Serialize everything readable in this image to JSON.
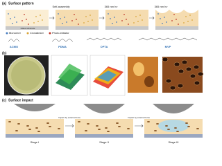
{
  "panel_a": {
    "label": "(a)",
    "title": "Surface pattern",
    "steps": [
      "Self-assembly",
      "365 nm hν",
      "365 nm hν"
    ],
    "substrate": "Glass substrate",
    "legend": [
      "Monomer",
      "Crosslinker",
      "Photo-initiator"
    ],
    "molecules": [
      "ACMO",
      "PDMA",
      "OPTA",
      "MVP"
    ]
  },
  "panel_b": {
    "label": "(b)"
  },
  "panel_c": {
    "label": "(c)",
    "title": "Surface impact",
    "notes": [
      "Impact by external force",
      "Impact by external force"
    ],
    "stages": [
      "Stage I",
      "Stage II",
      "Stage III"
    ]
  }
}
